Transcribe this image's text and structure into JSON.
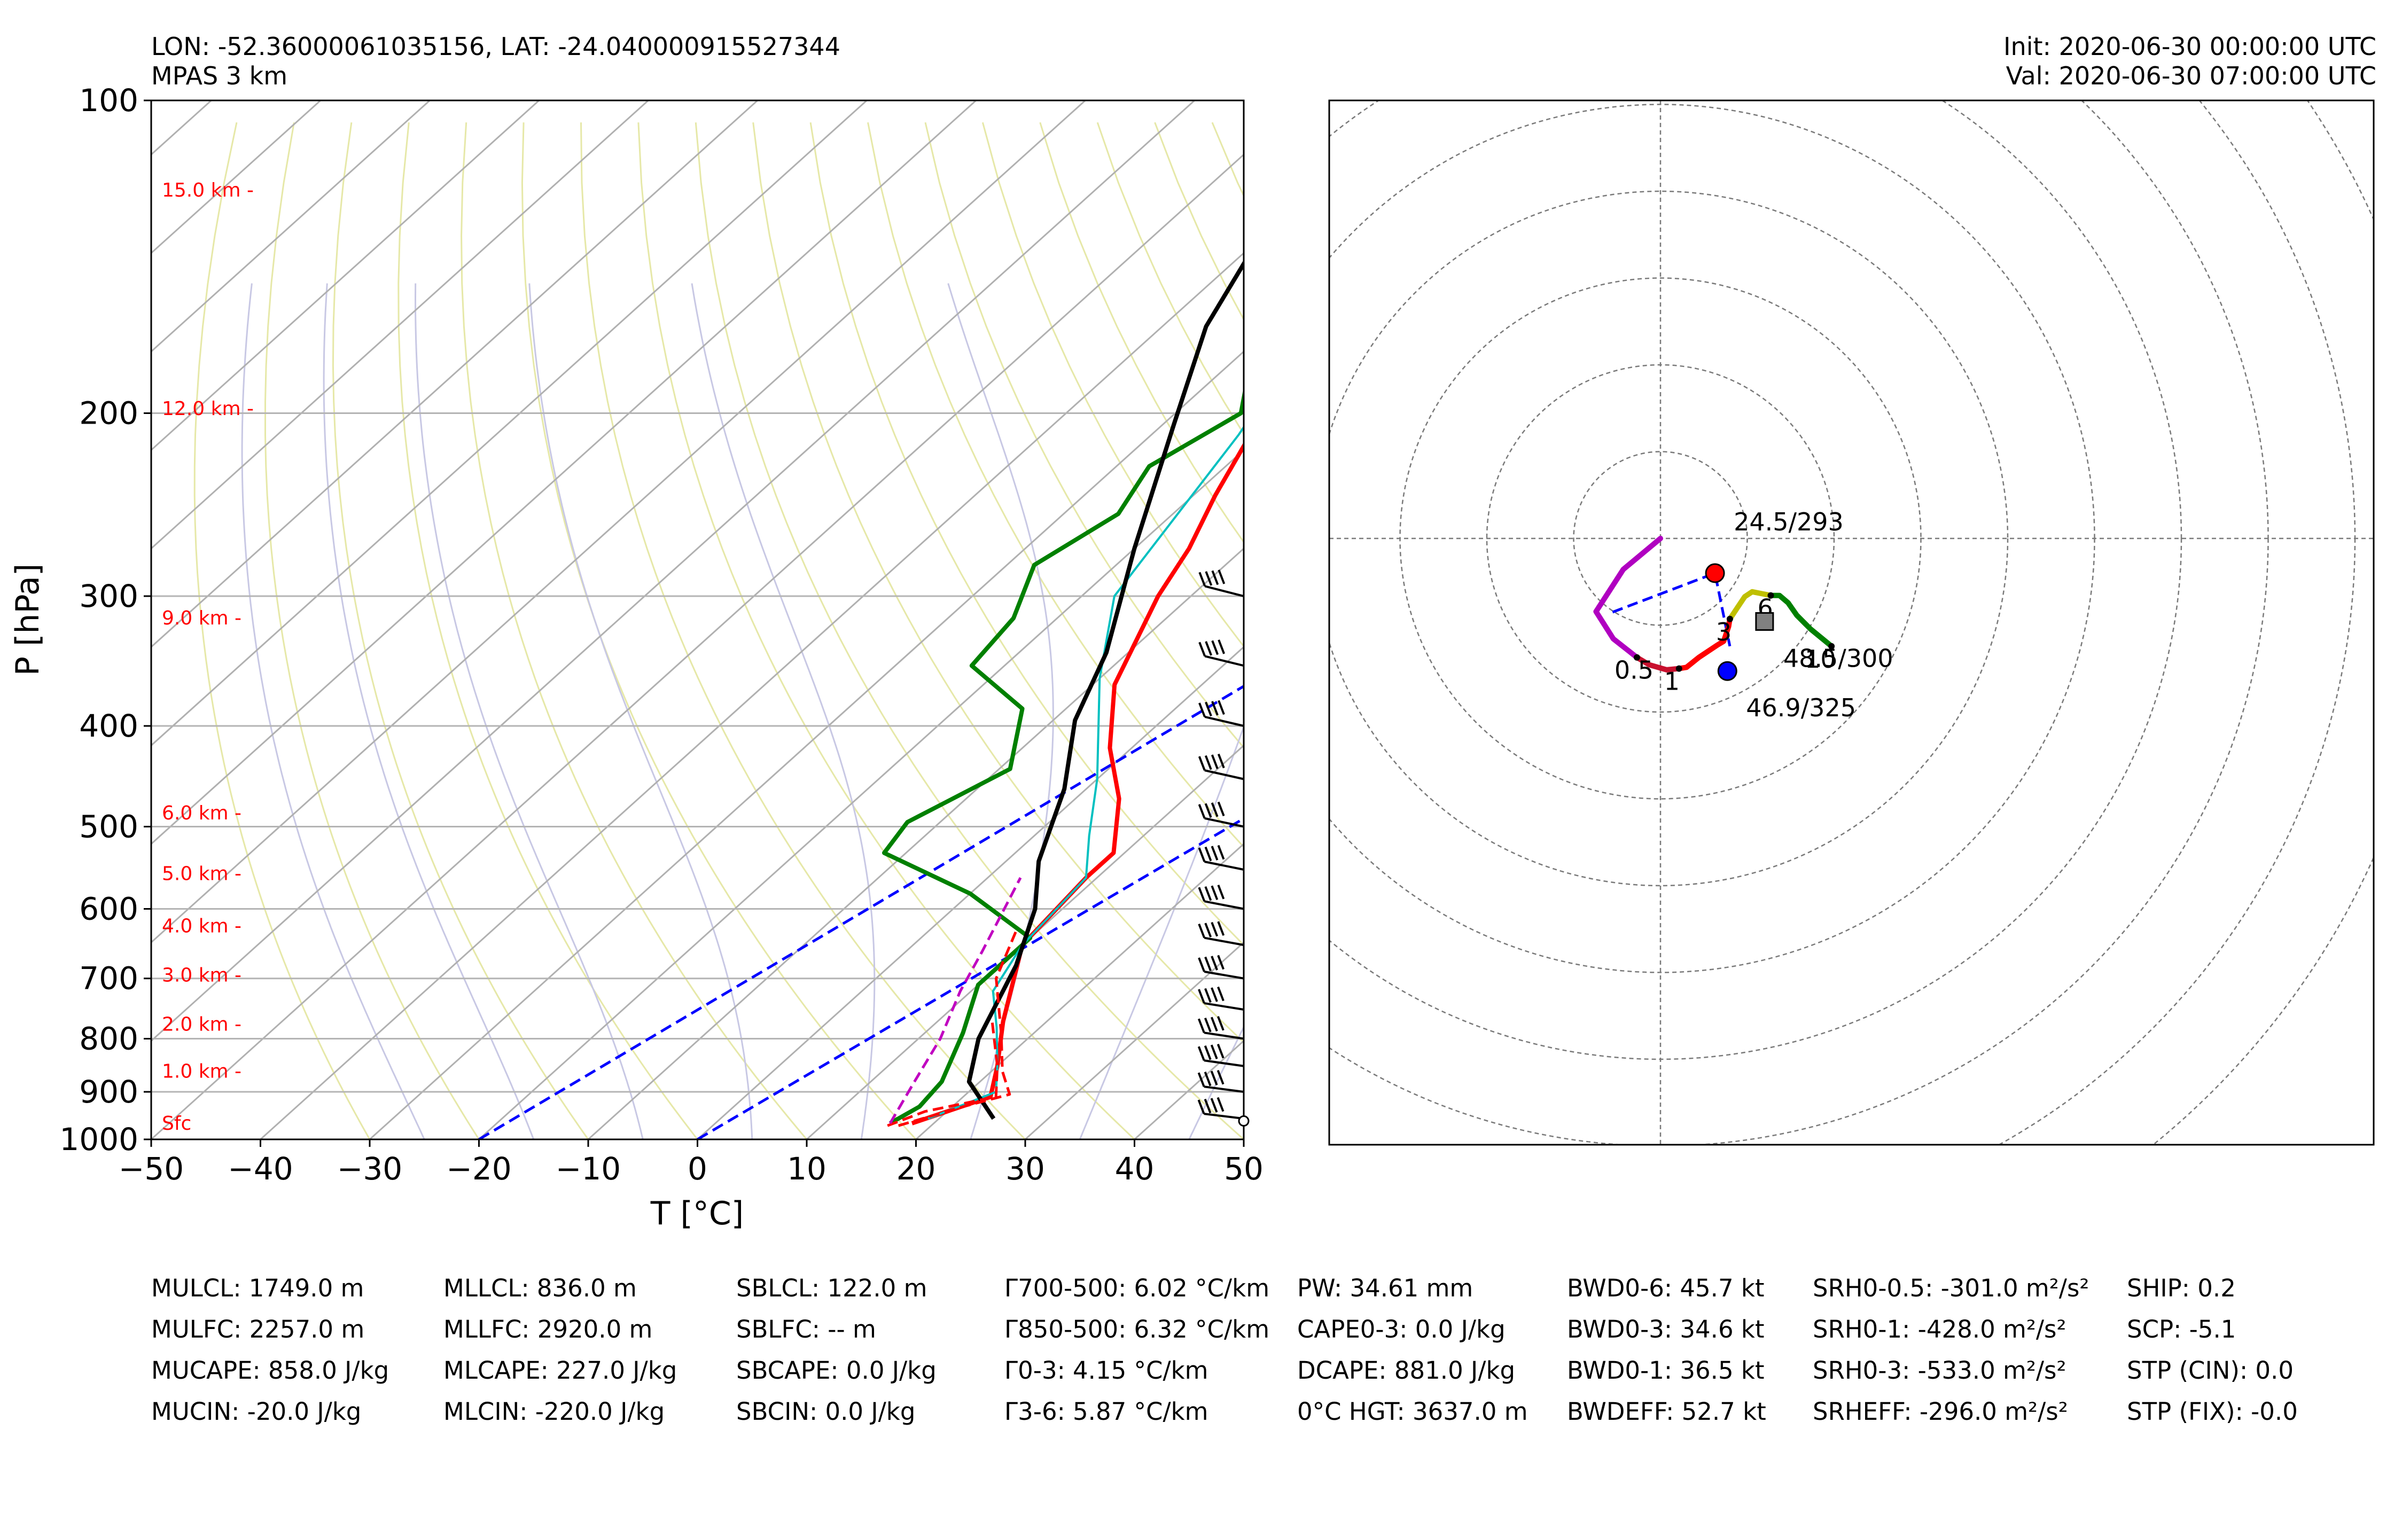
{
  "header": {
    "location": "LON: -52.36000061035156, LAT: -24.040000915527344",
    "model": "MPAS 3 km",
    "init": "Init: 2020-06-30 00:00:00 UTC",
    "valid": "Val: 2020-06-30 07:00:00 UTC"
  },
  "colors": {
    "temperature": "#ff0000",
    "dewpoint": "#008000",
    "virtual_temperature": "#00c0c0",
    "parcel": "#000000",
    "zero_isotherm": "#0000ff",
    "height_labels": "#ff0000",
    "hodo_0_1": "#c8102e",
    "hodo_1_3": "#ff0000",
    "hodo_3_6": "#bfbf00",
    "hodo_6_10": "#008000",
    "hodo_low": "#b000c0"
  },
  "chart_data": [
    {
      "type": "line",
      "subtype": "skew-T log-P",
      "xlabel": "T [°C]",
      "ylabel": "P [hPa]",
      "xlim": [
        -50,
        50
      ],
      "ylim": [
        1000,
        100
      ],
      "y_scale": "log",
      "xticks": [
        "−50",
        "−40",
        "−30",
        "−20",
        "−10",
        "0",
        "10",
        "20",
        "30",
        "40",
        "50"
      ],
      "yticks": [
        "100",
        "200",
        "300",
        "400",
        "500",
        "600",
        "700",
        "800",
        "900",
        "1000"
      ],
      "height_labels": [
        {
          "label": "Sfc",
          "p": 965
        },
        {
          "label": "1.0 km -",
          "p": 860
        },
        {
          "label": "2.0 km -",
          "p": 775
        },
        {
          "label": "3.0 km -",
          "p": 695
        },
        {
          "label": "4.0 km -",
          "p": 623
        },
        {
          "label": "5.0 km -",
          "p": 555
        },
        {
          "label": "6.0 km -",
          "p": 485
        },
        {
          "label": "9.0 km -",
          "p": 315
        },
        {
          "label": "12.0 km -",
          "p": 198
        },
        {
          "label": "15.0 km -",
          "p": 122
        }
      ],
      "series": [
        {
          "name": "Temperature",
          "points": [
            [
              18,
              965
            ],
            [
              22.5,
              910
            ],
            [
              20,
              850
            ],
            [
              16,
              770
            ],
            [
              10,
              650
            ],
            [
              9,
              560
            ],
            [
              9,
              530
            ],
            [
              4,
              470
            ],
            [
              -2,
              420
            ],
            [
              -8,
              365
            ],
            [
              -13,
              300
            ],
            [
              -15,
              270
            ],
            [
              -18,
              240
            ],
            [
              -22,
              200
            ],
            [
              -26,
              168
            ],
            [
              -28,
              150
            ],
            [
              -29,
              132
            ],
            [
              -28.5,
              115
            ],
            [
              -27,
              102
            ],
            [
              -26.5,
              100
            ]
          ]
        },
        {
          "name": "Dewpoint",
          "points": [
            [
              16,
              965
            ],
            [
              17,
              930
            ],
            [
              16.5,
              880
            ],
            [
              13.5,
              790
            ],
            [
              10,
              710
            ],
            [
              10,
              640
            ],
            [
              0,
              580
            ],
            [
              -12,
              530
            ],
            [
              -13,
              495
            ],
            [
              -9,
              440
            ],
            [
              -14,
              385
            ],
            [
              -23,
              350
            ],
            [
              -24,
              315
            ],
            [
              -27.5,
              280
            ],
            [
              -25,
              250
            ],
            [
              -27,
              225
            ],
            [
              -24,
              200
            ],
            [
              -28,
              180
            ],
            [
              -30,
              160
            ],
            [
              -26,
              133
            ],
            [
              -24.5,
              100
            ]
          ]
        },
        {
          "name": "Virtual temperature",
          "points": [
            [
              19,
              955
            ],
            [
              22.5,
              900
            ],
            [
              20,
              850
            ],
            [
              16,
              780
            ],
            [
              12,
              720
            ],
            [
              10,
              650
            ],
            [
              9,
              560
            ],
            [
              5,
              510
            ],
            [
              0,
              450
            ],
            [
              -10,
              360
            ],
            [
              -17,
              300
            ],
            [
              -22,
              210
            ],
            [
              -28,
              150
            ],
            [
              -28,
              110
            ],
            [
              -26,
              100
            ]
          ]
        },
        {
          "name": "Parcel",
          "points": [
            [
              25,
              955
            ],
            [
              19,
              880
            ],
            [
              15.5,
              800
            ],
            [
              11.5,
              680
            ],
            [
              7.5,
              600
            ],
            [
              3,
              540
            ],
            [
              -2,
              460
            ],
            [
              -8,
              395
            ],
            [
              -12,
              340
            ],
            [
              -20,
              270
            ],
            [
              -29,
              205
            ],
            [
              -36,
              165
            ],
            [
              -41,
              130
            ],
            [
              -46,
              110
            ],
            [
              -50,
              100
            ]
          ]
        },
        {
          "name": "Surface parcel",
          "points": [
            [
              17,
              970
            ],
            [
              21,
              930
            ],
            [
              24,
              905
            ],
            [
              21,
              860
            ],
            [
              17,
              790
            ],
            [
              11,
              700
            ],
            [
              8,
              630
            ]
          ]
        },
        {
          "name": "Downdraft parcel",
          "points": [
            [
              16,
              970
            ],
            [
              18,
              940
            ],
            [
              23,
              910
            ],
            [
              20,
              850
            ],
            [
              15,
              770
            ]
          ]
        },
        {
          "name": "Wet-bulb",
          "points": [
            [
              16,
              965
            ],
            [
              14,
              880
            ],
            [
              12,
              800
            ],
            [
              9,
              720
            ],
            [
              7,
              660
            ],
            [
              3,
              560
            ]
          ]
        }
      ],
      "isotherm_0C": [
        [
          0,
          1000
        ],
        [
          50,
          130
        ]
      ],
      "isotherm_minus20C": [
        [
          -20,
          1000
        ],
        [
          35,
          100
        ]
      ],
      "wind_barbs_p": [
        955,
        900,
        850,
        800,
        750,
        700,
        650,
        600,
        550,
        500,
        450,
        400,
        350,
        300
      ]
    },
    {
      "type": "line",
      "subtype": "hodograph",
      "ring_count": 9,
      "series": [
        {
          "name": "0-0.5 km",
          "points": [
            [
              0,
              0
            ],
            [
              -30,
              -25
            ],
            [
              -52,
              -59
            ],
            [
              -38,
              -81
            ],
            [
              -19,
              -96
            ]
          ]
        },
        {
          "name": "0.5-1 km",
          "points": [
            [
              -19,
              -96
            ],
            [
              -9,
              -102
            ],
            [
              5,
              -106
            ],
            [
              15,
              -105
            ]
          ]
        },
        {
          "name": "1-3 km",
          "points": [
            [
              15,
              -105
            ],
            [
              21,
              -104
            ],
            [
              31,
              -96
            ],
            [
              46,
              -86
            ],
            [
              51,
              -83
            ],
            [
              55,
              -71
            ],
            [
              56,
              -65
            ]
          ]
        },
        {
          "name": "3-6 km",
          "points": [
            [
              56,
              -65
            ],
            [
              62,
              -56
            ],
            [
              68,
              -47
            ],
            [
              74,
              -43
            ],
            [
              89,
              -46
            ]
          ]
        },
        {
          "name": "6-10 km",
          "points": [
            [
              89,
              -46
            ],
            [
              96,
              -46
            ],
            [
              103,
              -52
            ],
            [
              110,
              -62
            ],
            [
              121,
              -73
            ],
            [
              138,
              -87
            ]
          ]
        }
      ],
      "height_labels": [
        {
          "label": "0.5",
          "u": -19,
          "v": -96
        },
        {
          "label": "1",
          "u": 15,
          "v": -105
        },
        {
          "label": "3",
          "u": 56,
          "v": -65
        },
        {
          "label": "6",
          "u": 89,
          "v": -46
        },
        {
          "label": "10",
          "u": 138,
          "v": -87
        }
      ],
      "markers": [
        {
          "label": "24.5/293",
          "u": 44,
          "v": -28,
          "kind": "right-mover"
        },
        {
          "label": "46.9/325",
          "u": 54,
          "v": -107,
          "kind": "left-mover"
        },
        {
          "label": "48.5/300",
          "u": 84,
          "v": -67,
          "kind": "mean-wind"
        }
      ]
    }
  ],
  "indices": [
    [
      "MULCL: 1749.0 m",
      "MULFC: 2257.0 m",
      "MUCAPE: 858.0 J/kg",
      "MUCIN: -20.0 J/kg"
    ],
    [
      "MLLCL: 836.0 m",
      "MLLFC: 2920.0 m",
      "MLCAPE: 227.0 J/kg",
      "MLCIN: -220.0 J/kg"
    ],
    [
      "SBLCL: 122.0 m",
      "SBLFC: -- m",
      "SBCAPE: 0.0 J/kg",
      "SBCIN: 0.0 J/kg"
    ],
    [
      "Γ700-500: 6.02 °C/km",
      "Γ850-500: 6.32 °C/km",
      "Γ0-3: 4.15 °C/km",
      "Γ3-6: 5.87 °C/km"
    ],
    [
      "PW: 34.61 mm",
      "CAPE0-3: 0.0 J/kg",
      "DCAPE: 881.0 J/kg",
      "0°C HGT: 3637.0 m"
    ],
    [
      "BWD0-6: 45.7 kt",
      "BWD0-3: 34.6 kt",
      "BWD0-1: 36.5 kt",
      "BWDEFF: 52.7 kt"
    ],
    [
      "SRH0-0.5: -301.0 m²/s²",
      "SRH0-1: -428.0 m²/s²",
      "SRH0-3: -533.0 m²/s²",
      "SRHEFF: -296.0 m²/s²"
    ],
    [
      "SHIP: 0.2",
      "SCP: -5.1",
      "STP (CIN): 0.0",
      "STP (FIX): -0.0"
    ]
  ]
}
